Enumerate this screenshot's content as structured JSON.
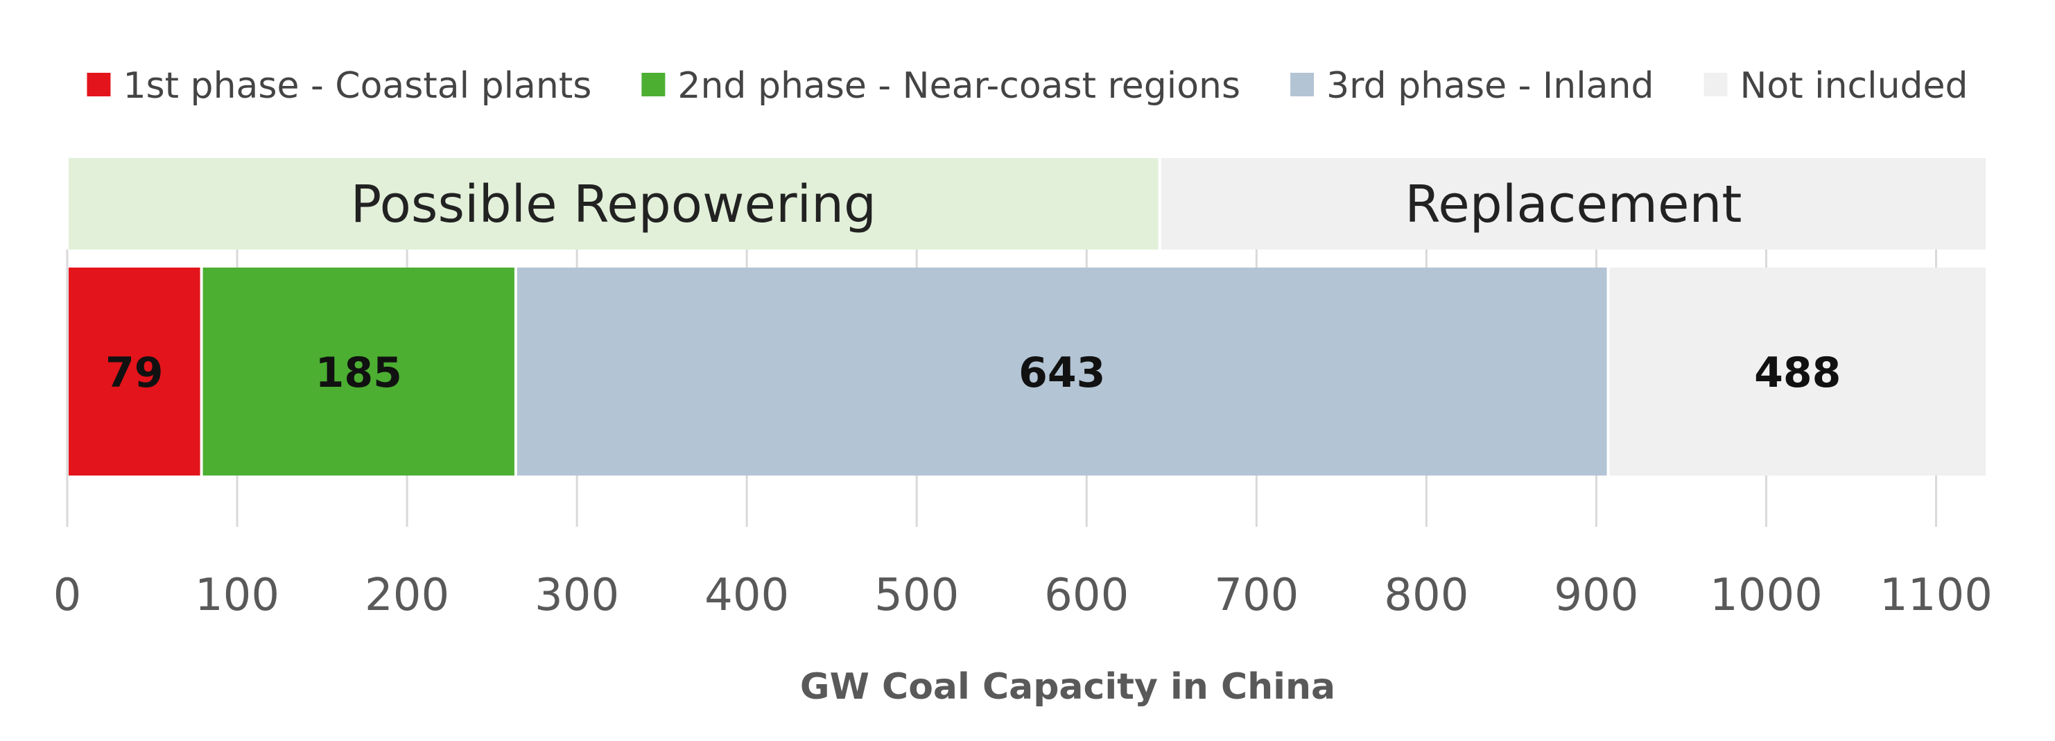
{
  "chart_data": {
    "type": "bar",
    "orientation": "horizontal-stacked",
    "xlabel": "GW Coal Capacity in China",
    "xlim": [
      0,
      1130
    ],
    "xticks": [
      0,
      100,
      200,
      300,
      400,
      500,
      600,
      700,
      800,
      900,
      1000,
      1100
    ],
    "grid": true,
    "legend_position": "top",
    "segments": [
      {
        "name": "1st phase - Coastal plants",
        "value": 79,
        "color": "#e3141b"
      },
      {
        "name": "2nd phase - Near-coast regions",
        "value": 185,
        "color": "#4caf32"
      },
      {
        "name": "3rd phase - Inland",
        "value": 643,
        "color": "#b3c4d4"
      },
      {
        "name": "Not included",
        "value": 488,
        "color": "#f0f0f0"
      }
    ],
    "groups": [
      {
        "label": "Possible Repowering",
        "start": 0,
        "end": 643,
        "color": "#e2f0d9"
      },
      {
        "label": "Replacement",
        "start": 643,
        "end": 1130,
        "color": "#f0f0f0"
      }
    ]
  }
}
